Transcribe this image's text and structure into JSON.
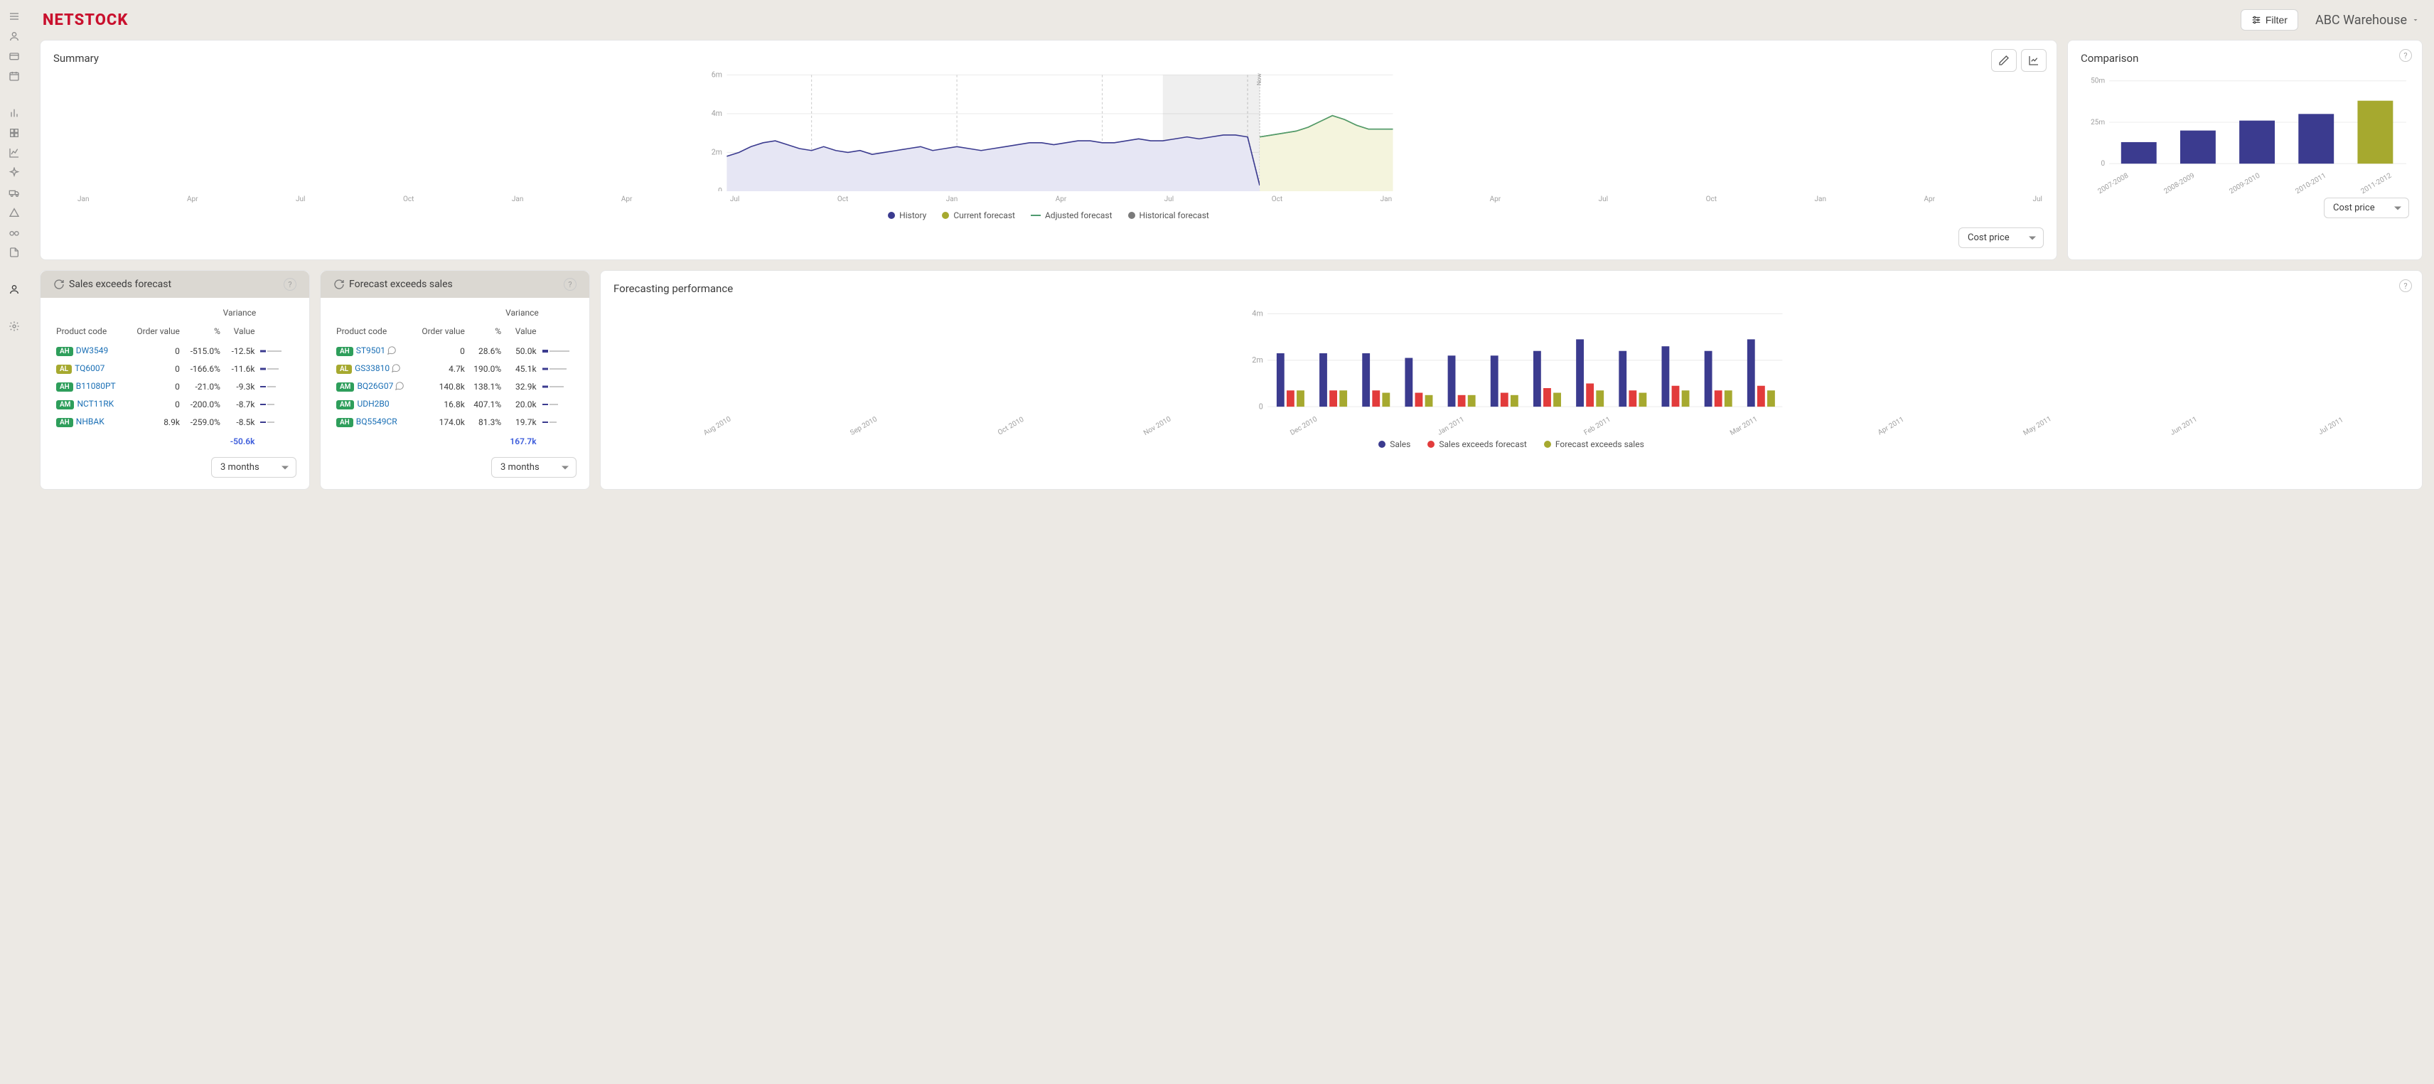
{
  "brand": {
    "text": "NETSTOCK",
    "color": "#c9102d"
  },
  "topbar": {
    "filter_label": "Filter",
    "warehouse_label": "ABC Warehouse"
  },
  "sidebar_icons": [
    "menu",
    "user",
    "card",
    "calendar",
    "",
    "bar-chart",
    "grid",
    "line-chart",
    "sparkle",
    "truck",
    "triangle",
    "glasses",
    "file",
    "",
    "person-dark",
    "",
    "gear"
  ],
  "colors": {
    "history": "#3b3b8f",
    "history_fill": "#e6e6f4",
    "current_forecast": "#a6a92f",
    "current_forecast_fill": "#f4f4dd",
    "adjusted_forecast": "#4f9a6f",
    "historical_forecast": "#7a7a7a",
    "grid": "#ececec",
    "axis_text": "#a0a0a0",
    "shaded_region": "#00000010",
    "bar_primary": "#3b3b8f",
    "bar_olive": "#a6a92f",
    "bar_red": "#e23b3b",
    "badge_green": "#2e9e5b",
    "badge_olive": "#a6a92f",
    "link": "#1a6fb5",
    "total_blue": "#3b5bdb"
  },
  "summary": {
    "title": "Summary",
    "select_value": "Cost price",
    "y_ticks": [
      "0",
      "2m",
      "4m",
      "6m"
    ],
    "y_max": 6,
    "x_labels": [
      "Jan",
      "Apr",
      "Jul",
      "Oct",
      "Jan",
      "Apr",
      "Jul",
      "Oct",
      "Jan",
      "Apr",
      "Jul",
      "Oct",
      "Jan",
      "Apr",
      "Jul",
      "Oct",
      "Jan",
      "Apr",
      "Jul"
    ],
    "now_label": "Now",
    "n_points": 56,
    "now_index": 44,
    "shaded_start_index": 36,
    "year_divider_indices": [
      7,
      19,
      31,
      43
    ],
    "history": [
      1.8,
      2.0,
      2.3,
      2.5,
      2.6,
      2.4,
      2.2,
      2.1,
      2.3,
      2.1,
      2.0,
      2.1,
      1.9,
      2.0,
      2.1,
      2.2,
      2.3,
      2.1,
      2.2,
      2.3,
      2.2,
      2.1,
      2.2,
      2.3,
      2.4,
      2.5,
      2.5,
      2.4,
      2.5,
      2.6,
      2.6,
      2.5,
      2.5,
      2.6,
      2.7,
      2.6,
      2.6,
      2.7,
      2.8,
      2.7,
      2.8,
      2.9,
      2.9,
      2.8,
      0.3
    ],
    "adjusted": [
      2.8,
      2.9,
      3.0,
      3.1,
      3.3,
      3.6,
      3.9,
      3.7,
      3.4,
      3.2,
      3.2,
      3.2
    ],
    "current_forecast": [
      2.8,
      2.9,
      3.0,
      3.1,
      3.3,
      3.6,
      3.9,
      3.7,
      3.4,
      3.2,
      3.2,
      3.2
    ],
    "legend": [
      {
        "label": "History",
        "color": "#3b3b8f"
      },
      {
        "label": "Current forecast",
        "color": "#a6a92f"
      },
      {
        "label": "Adjusted forecast",
        "color": "#4f9a6f",
        "line": true
      },
      {
        "label": "Historical forecast",
        "color": "#7a7a7a"
      }
    ]
  },
  "comparison": {
    "title": "Comparison",
    "select_value": "Cost price",
    "y_ticks": [
      "0",
      "25m",
      "50m"
    ],
    "y_max": 50,
    "bars": [
      {
        "label": "2007-2008",
        "value": 13,
        "color": "#3b3b8f"
      },
      {
        "label": "2008-2009",
        "value": 20,
        "color": "#3b3b8f"
      },
      {
        "label": "2009-2010",
        "value": 26,
        "color": "#3b3b8f"
      },
      {
        "label": "2010-2011",
        "value": 30,
        "color": "#3b3b8f"
      },
      {
        "label": "2011-2012",
        "value": 38,
        "color": "#a6a92f"
      }
    ]
  },
  "sales_exceeds": {
    "title": "Sales exceeds forecast",
    "variance_hdr": "Variance",
    "columns": [
      "Product code",
      "Order value",
      "%",
      "Value"
    ],
    "rows": [
      {
        "badge": "AH",
        "badge_color": "#2e9e5b",
        "code": "DW3549",
        "order": "0",
        "pct": "-515.0%",
        "val": "-12.5k",
        "spark": [
          3,
          10
        ]
      },
      {
        "badge": "AL",
        "badge_color": "#a6a92f",
        "code": "TQ6007",
        "order": "0",
        "pct": "-166.6%",
        "val": "-11.6k",
        "spark": [
          3,
          8
        ]
      },
      {
        "badge": "AH",
        "badge_color": "#2e9e5b",
        "code": "B11080PT",
        "order": "0",
        "pct": "-21.0%",
        "val": "-9.3k",
        "spark": [
          2,
          6
        ]
      },
      {
        "badge": "AM",
        "badge_color": "#2e9e5b",
        "code": "NCT11RK",
        "order": "0",
        "pct": "-200.0%",
        "val": "-8.7k",
        "spark": [
          2,
          5
        ]
      },
      {
        "badge": "AH",
        "badge_color": "#2e9e5b",
        "code": "NHBAK",
        "order": "8.9k",
        "pct": "-259.0%",
        "val": "-8.5k",
        "spark": [
          2,
          5
        ]
      }
    ],
    "total": "-50.6k",
    "select_value": "3 months"
  },
  "forecast_exceeds": {
    "title": "Forecast exceeds sales",
    "variance_hdr": "Variance",
    "columns": [
      "Product code",
      "Order value",
      "%",
      "Value"
    ],
    "rows": [
      {
        "badge": "AH",
        "badge_color": "#2e9e5b",
        "code": "ST9501",
        "comment": true,
        "order": "0",
        "pct": "28.6%",
        "val": "50.0k",
        "spark": [
          4,
          14
        ]
      },
      {
        "badge": "AL",
        "badge_color": "#a6a92f",
        "code": "GS33810",
        "comment": true,
        "order": "4.7k",
        "pct": "190.0%",
        "val": "45.1k",
        "spark": [
          3,
          12
        ]
      },
      {
        "badge": "AM",
        "badge_color": "#2e9e5b",
        "code": "BQ26G07",
        "comment": true,
        "order": "140.8k",
        "pct": "138.1%",
        "val": "32.9k",
        "spark": [
          3,
          10
        ]
      },
      {
        "badge": "AM",
        "badge_color": "#2e9e5b",
        "code": "UDH2B0",
        "order": "16.8k",
        "pct": "407.1%",
        "val": "20.0k",
        "spark": [
          2,
          6
        ]
      },
      {
        "badge": "AH",
        "badge_color": "#2e9e5b",
        "code": "BQ5549CR",
        "order": "174.0k",
        "pct": "81.3%",
        "val": "19.7k",
        "spark": [
          2,
          5
        ]
      }
    ],
    "total": "167.7k",
    "select_value": "3 months"
  },
  "forecast_perf": {
    "title": "Forecasting performance",
    "y_ticks": [
      "0",
      "2m",
      "4m"
    ],
    "y_max": 4,
    "months": [
      "Aug 2010",
      "Sep 2010",
      "Oct 2010",
      "Nov 2010",
      "Dec 2010",
      "Jan 2011",
      "Feb 2011",
      "Mar 2011",
      "Apr 2011",
      "May 2011",
      "Jun 2011",
      "Jul 2011"
    ],
    "series": {
      "sales": [
        2.3,
        2.3,
        2.3,
        2.1,
        2.2,
        2.2,
        2.4,
        2.9,
        2.4,
        2.6,
        2.4,
        2.9
      ],
      "sef": [
        0.7,
        0.7,
        0.7,
        0.6,
        0.5,
        0.6,
        0.8,
        1.0,
        0.7,
        0.9,
        0.7,
        0.9
      ],
      "fes": [
        0.7,
        0.7,
        0.6,
        0.5,
        0.5,
        0.5,
        0.6,
        0.7,
        0.6,
        0.7,
        0.7,
        0.7
      ]
    },
    "legend": [
      {
        "label": "Sales",
        "color": "#3b3b8f"
      },
      {
        "label": "Sales exceeds forecast",
        "color": "#e23b3b"
      },
      {
        "label": "Forecast exceeds sales",
        "color": "#a6a92f"
      }
    ]
  }
}
